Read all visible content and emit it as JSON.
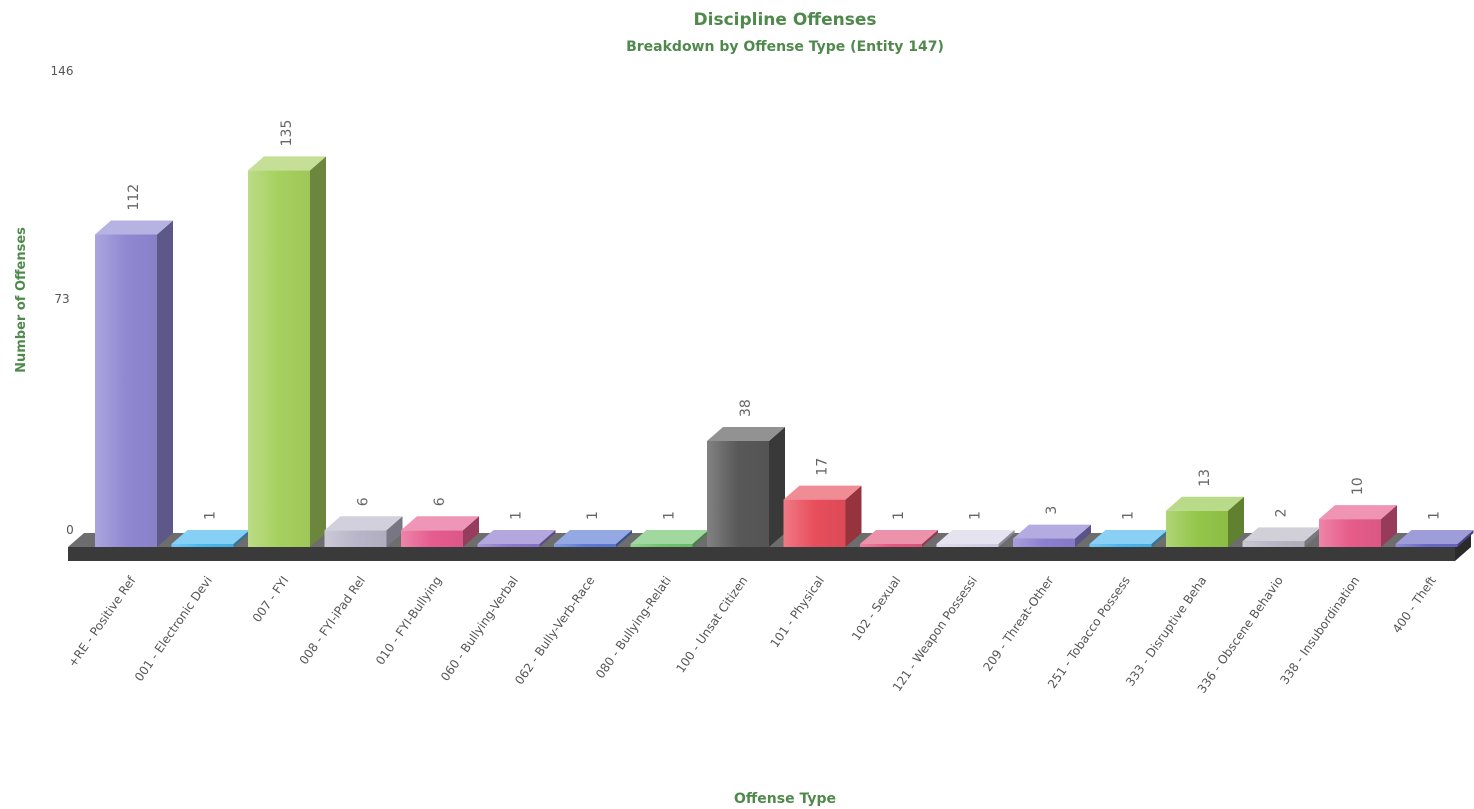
{
  "chart_data": {
    "type": "bar",
    "title": "Discipline Offenses",
    "subtitle": "Breakdown by Offense Type (Entity 147)",
    "xlabel": "Offense Type",
    "ylabel": "Number of Offenses",
    "ylim": [
      0,
      146
    ],
    "yticks": [
      "0",
      "73",
      "146"
    ],
    "grid": false,
    "three_d": true,
    "categories": [
      "+RE - Positive Ref",
      "001 - Electronic Devi",
      "007 - FYI",
      "008 - FYI-iPad Rel",
      "010 - FYI-Bullying",
      "060 - Bullying-Verbal",
      "062 - Bully-Verb-Race",
      "080 - Bullying-Relati",
      "100 - Unsat Citizen",
      "101 - Physical",
      "102 - Sexual",
      "121 - Weapon Possessi",
      "209 - Threat-Other",
      "251 - Tobacco Possess",
      "333 - Disruptive Beha",
      "336 - Obscene Behavio",
      "338 - Insubordination",
      "400 - Theft"
    ],
    "values": [
      112,
      1,
      135,
      6,
      6,
      1,
      1,
      1,
      38,
      17,
      1,
      1,
      3,
      1,
      13,
      2,
      10,
      1
    ],
    "colors": [
      "#8f88d2",
      "#47b7f0",
      "#a6d05e",
      "#b9b6c9",
      "#e65c8e",
      "#8a78cc",
      "#5b7bd6",
      "#6fc36b",
      "#585858",
      "#e84e5c",
      "#e4587e",
      "#d6d4e6",
      "#8b7fd0",
      "#49b6ee",
      "#94c64a",
      "#b8b6c4",
      "#e65c8a",
      "#6a68c6"
    ]
  }
}
